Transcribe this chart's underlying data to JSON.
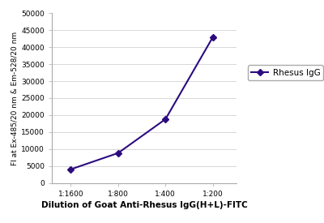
{
  "x_labels": [
    "1:1600",
    "1:800",
    "1:400",
    "1:200"
  ],
  "x_values": [
    0,
    1,
    2,
    3
  ],
  "y_values": [
    4000,
    8800,
    18800,
    43000
  ],
  "y_ticks": [
    0,
    5000,
    10000,
    15000,
    20000,
    25000,
    30000,
    35000,
    40000,
    45000,
    50000
  ],
  "ylim": [
    0,
    50000
  ],
  "line_color": "#2d0b7f",
  "marker": "D",
  "marker_size": 4,
  "line_width": 1.5,
  "ylabel": "FI at Ex-485/20 nm & Em-528/20 nm",
  "xlabel": "Dilution of Goat Anti-Rhesus IgG(H+L)-FITC",
  "legend_label": "Rhesus IgG",
  "background_color": "#ffffff",
  "grid_color": "#d8d8d8",
  "ylabel_fontsize": 6.5,
  "xlabel_fontsize": 7.5,
  "tick_fontsize": 6.5,
  "legend_fontsize": 7.5
}
